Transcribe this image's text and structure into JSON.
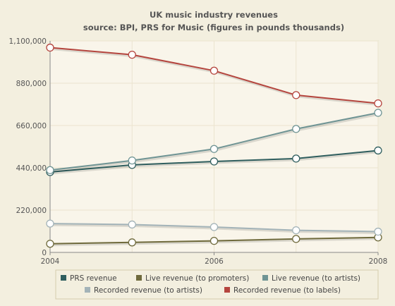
{
  "chart_data": {
    "type": "line",
    "title": "UK music industry revenues",
    "subtitle": "source: BPI, PRS for Music (figures in pounds thousands)",
    "x": [
      2004,
      2005,
      2006,
      2007,
      2008
    ],
    "x_ticks": [
      "2004",
      "2006",
      "2008"
    ],
    "y_ticks": [
      "0",
      "220,000",
      "440,000",
      "660,000",
      "880,000",
      "1,100,000"
    ],
    "ylim": [
      0,
      1100000
    ],
    "grid": true,
    "legend_position": "bottom",
    "series": [
      {
        "name": "PRS revenue",
        "color": "#2f5e5e",
        "values": [
          418000,
          455000,
          473000,
          488000,
          530000
        ]
      },
      {
        "name": "Live revenue (to promoters)",
        "color": "#6f6a3c",
        "values": [
          45000,
          52000,
          60000,
          70000,
          78000
        ]
      },
      {
        "name": "Live revenue (to artists)",
        "color": "#6f9494",
        "values": [
          428000,
          478000,
          538000,
          642000,
          726000
        ]
      },
      {
        "name": "Recorded revenue (to artists)",
        "color": "#a3b3b8",
        "values": [
          150000,
          145000,
          132000,
          115000,
          108000
        ]
      },
      {
        "name": "Recorded revenue (to labels)",
        "color": "#b5453e",
        "values": [
          1065000,
          1028000,
          945000,
          818000,
          775000
        ]
      }
    ]
  }
}
